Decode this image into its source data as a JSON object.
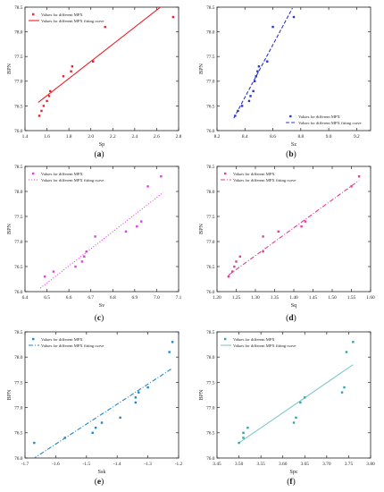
{
  "chart_data": [
    {
      "panel_label": "(a)",
      "type": "scatter",
      "xlabel": "Sp",
      "ylabel": "BPN",
      "xlim": [
        1.4,
        2.8
      ],
      "ylim": [
        76.0,
        78.5
      ],
      "xticks": [
        "1.4",
        "1.6",
        "1.8",
        "2.0",
        "2.2",
        "2.4",
        "2.6",
        "2.8"
      ],
      "xtick_values": [
        1.4,
        1.6,
        1.8,
        2.0,
        2.2,
        2.4,
        2.6,
        2.8
      ],
      "yticks": [
        "76.0",
        "76.5",
        "77.0",
        "77.5",
        "78.0",
        "78.5"
      ],
      "ytick_values": [
        76.0,
        76.5,
        77.0,
        77.5,
        78.0,
        78.5
      ],
      "legend_position": "top-left",
      "marker_color": "#e8212a",
      "line_color": "#e8212a",
      "line_style": "solid",
      "legend": [
        "Values for different MPX",
        "Values for different MPX fitting curve"
      ],
      "points": [
        [
          1.53,
          76.3
        ],
        [
          1.55,
          76.4
        ],
        [
          1.57,
          76.5
        ],
        [
          1.6,
          76.6
        ],
        [
          1.62,
          76.7
        ],
        [
          1.63,
          76.8
        ],
        [
          1.75,
          77.1
        ],
        [
          1.82,
          77.2
        ],
        [
          1.83,
          77.3
        ],
        [
          2.02,
          77.4
        ],
        [
          2.13,
          78.1
        ],
        [
          2.75,
          78.3
        ],
        [
          2.72,
          78.55
        ]
      ],
      "fit_line": [
        [
          1.52,
          76.57
        ],
        [
          2.68,
          78.58
        ]
      ]
    },
    {
      "panel_label": "(b)",
      "type": "scatter",
      "xlabel": "Sz",
      "ylabel": "BPN",
      "xlim": [
        8.2,
        9.3
      ],
      "ylim": [
        76.0,
        78.5
      ],
      "xticks": [
        "8.2",
        "8.4",
        "8.6",
        "8.8",
        "9.0",
        "9.2"
      ],
      "xtick_values": [
        8.2,
        8.4,
        8.6,
        8.8,
        9.0,
        9.2
      ],
      "yticks": [
        "76.0",
        "76.5",
        "77.0",
        "77.5",
        "78.0",
        "78.5"
      ],
      "ytick_values": [
        76.0,
        76.5,
        77.0,
        77.5,
        78.0,
        78.5
      ],
      "legend_position": "bottom-right",
      "marker_color": "#2a34c8",
      "line_color": "#2a34c8",
      "line_style": "dashed",
      "legend": [
        "Values for different MPX",
        "Values for different MPX fitting curve"
      ],
      "points": [
        [
          8.33,
          76.3
        ],
        [
          8.35,
          76.4
        ],
        [
          8.38,
          76.5
        ],
        [
          8.43,
          76.6
        ],
        [
          8.44,
          76.7
        ],
        [
          8.46,
          76.8
        ],
        [
          8.47,
          77.0
        ],
        [
          8.48,
          77.1
        ],
        [
          8.49,
          77.2
        ],
        [
          8.5,
          77.3
        ],
        [
          8.56,
          77.4
        ],
        [
          8.6,
          78.1
        ],
        [
          8.75,
          78.3
        ],
        [
          8.62,
          78.55
        ]
      ],
      "fit_line": [
        [
          8.32,
          76.25
        ],
        [
          8.74,
          78.48
        ]
      ]
    },
    {
      "panel_label": "(c)",
      "type": "scatter",
      "xlabel": "Sv",
      "ylabel": "BPN",
      "xlim": [
        6.4,
        7.1
      ],
      "ylim": [
        76.0,
        78.5
      ],
      "xticks": [
        "6.4",
        "6.5",
        "6.6",
        "6.7",
        "6.8",
        "6.9",
        "7.0",
        "7.1"
      ],
      "xtick_values": [
        6.4,
        6.5,
        6.6,
        6.7,
        6.8,
        6.9,
        7.0,
        7.1
      ],
      "yticks": [
        "76.0",
        "76.5",
        "77.0",
        "77.5",
        "78.0",
        "78.5"
      ],
      "ytick_values": [
        76.0,
        76.5,
        77.0,
        77.5,
        78.0,
        78.5
      ],
      "legend_position": "top-left",
      "marker_color": "#e23be8",
      "line_color": "#e23be8",
      "line_style": "dotted",
      "legend": [
        "Values for different MPX",
        "Values for different MPX fitting curve"
      ],
      "points": [
        [
          6.49,
          76.3
        ],
        [
          6.53,
          76.4
        ],
        [
          6.63,
          76.5
        ],
        [
          6.66,
          76.6
        ],
        [
          6.67,
          76.7
        ],
        [
          6.68,
          76.8
        ],
        [
          6.72,
          77.1
        ],
        [
          6.86,
          77.2
        ],
        [
          6.91,
          77.3
        ],
        [
          6.93,
          77.4
        ],
        [
          6.96,
          78.1
        ],
        [
          7.02,
          78.3
        ]
      ],
      "fit_line": [
        [
          6.47,
          76.07
        ],
        [
          7.03,
          77.98
        ]
      ]
    },
    {
      "panel_label": "(d)",
      "type": "scatter",
      "xlabel": "Sq",
      "ylabel": "BPN",
      "xlim": [
        1.2,
        1.6
      ],
      "ylim": [
        76.0,
        78.5
      ],
      "xticks": [
        "1.20",
        "1.25",
        "1.30",
        "1.35",
        "1.40",
        "1.45",
        "1.50",
        "1.55",
        "1.60"
      ],
      "xtick_values": [
        1.2,
        1.25,
        1.3,
        1.35,
        1.4,
        1.45,
        1.5,
        1.55,
        1.6
      ],
      "yticks": [
        "76.0",
        "76.5",
        "77.0",
        "77.5",
        "78.0",
        "78.5"
      ],
      "ytick_values": [
        76.0,
        76.5,
        77.0,
        77.5,
        78.0,
        78.5
      ],
      "legend_position": "top-left",
      "marker_color": "#e23b9c",
      "line_color": "#e23b9c",
      "line_style": "dash-dot",
      "legend": [
        "Values for different MPX",
        "Values for different MPX fitting curve"
      ],
      "points": [
        [
          1.23,
          76.3
        ],
        [
          1.24,
          76.4
        ],
        [
          1.245,
          76.5
        ],
        [
          1.25,
          76.6
        ],
        [
          1.26,
          76.7
        ],
        [
          1.32,
          76.8
        ],
        [
          1.32,
          77.1
        ],
        [
          1.36,
          77.2
        ],
        [
          1.42,
          77.3
        ],
        [
          1.43,
          77.4
        ],
        [
          1.55,
          78.1
        ],
        [
          1.57,
          78.3
        ]
      ],
      "fit_line": [
        [
          1.23,
          76.33
        ],
        [
          1.57,
          78.22
        ]
      ]
    },
    {
      "panel_label": "(e)",
      "type": "scatter",
      "xlabel": "Ssk",
      "ylabel": "BPN",
      "xlim": [
        -1.7,
        -1.2
      ],
      "ylim": [
        76.0,
        78.5
      ],
      "xticks": [
        "-1.7",
        "-1.6",
        "-1.5",
        "-1.4",
        "-1.3",
        "-1.2"
      ],
      "xtick_values": [
        -1.7,
        -1.6,
        -1.5,
        -1.4,
        -1.3,
        -1.2
      ],
      "yticks": [
        "76.0",
        "76.5",
        "77.0",
        "77.5",
        "78.0",
        "78.5"
      ],
      "ytick_values": [
        76.0,
        76.5,
        77.0,
        77.5,
        78.0,
        78.5
      ],
      "legend_position": "top-left",
      "marker_color": "#1f86c8",
      "line_color": "#1f86c8",
      "line_style": "dash-dot",
      "legend": [
        "Values for different MPX",
        "Values for different MPX fitting curve"
      ],
      "points": [
        [
          -1.67,
          76.3
        ],
        [
          -1.57,
          76.4
        ],
        [
          -1.48,
          76.5
        ],
        [
          -1.47,
          76.6
        ],
        [
          -1.45,
          76.7
        ],
        [
          -1.39,
          76.8
        ],
        [
          -1.34,
          77.1
        ],
        [
          -1.34,
          77.2
        ],
        [
          -1.33,
          77.3
        ],
        [
          -1.3,
          77.4
        ],
        [
          -1.23,
          78.1
        ],
        [
          -1.22,
          78.3
        ]
      ],
      "fit_line": [
        [
          -1.7,
          75.88
        ],
        [
          -1.22,
          77.78
        ]
      ]
    },
    {
      "panel_label": "(f)",
      "type": "scatter",
      "xlabel": "Spc",
      "ylabel": "BPN",
      "xlim": [
        3.45,
        3.8
      ],
      "ylim": [
        76.0,
        78.5
      ],
      "xticks": [
        "3.45",
        "3.50",
        "3.55",
        "3.60",
        "3.65",
        "3.70",
        "3.75",
        "3.80"
      ],
      "xtick_values": [
        3.45,
        3.5,
        3.55,
        3.6,
        3.65,
        3.7,
        3.75,
        3.8
      ],
      "yticks": [
        "76.0",
        "76.5",
        "77.0",
        "77.5",
        "78.0",
        "78.5"
      ],
      "ytick_values": [
        76.0,
        76.5,
        77.0,
        77.5,
        78.0,
        78.5
      ],
      "legend_position": "top-left",
      "marker_color": "#2aa7a7",
      "line_color": "#7ec9c6",
      "line_style": "solid",
      "legend": [
        "Values for different MPX",
        "Values for different MPX fitting curve"
      ],
      "points": [
        [
          3.5,
          76.3
        ],
        [
          3.51,
          76.4
        ],
        [
          3.51,
          76.5
        ],
        [
          3.52,
          76.6
        ],
        [
          3.625,
          76.7
        ],
        [
          3.63,
          76.8
        ],
        [
          3.64,
          77.1
        ],
        [
          3.65,
          77.2
        ],
        [
          3.735,
          77.3
        ],
        [
          3.74,
          77.4
        ],
        [
          3.745,
          78.1
        ],
        [
          3.76,
          78.3
        ]
      ],
      "fit_line": [
        [
          3.5,
          76.3
        ],
        [
          3.76,
          77.85
        ]
      ]
    }
  ]
}
